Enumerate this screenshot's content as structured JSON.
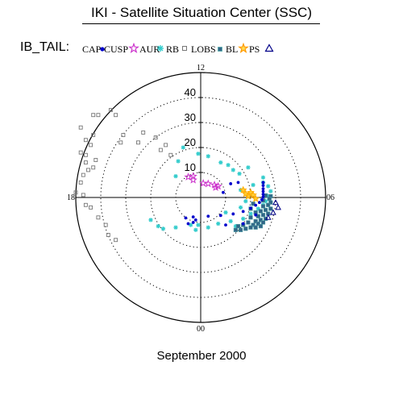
{
  "title": "IKI - Satellite Situation Center (SSC)",
  "legend": {
    "prefix": "IB_TAIL:",
    "items": [
      {
        "label": "CAP",
        "symbol": "dot",
        "color": "#0000cc"
      },
      {
        "label": "CUSP",
        "symbol": "star",
        "color": "#cc33cc"
      },
      {
        "label": "AUR",
        "symbol": "asterisk",
        "color": "#33cccc"
      },
      {
        "label": "RB",
        "symbol": "square",
        "color": "#777777"
      },
      {
        "label": "LOBS",
        "symbol": "square-filled",
        "color": "#336688"
      },
      {
        "label": "BL",
        "symbol": "star",
        "color": "#ffaa00"
      },
      {
        "label": "PS",
        "symbol": "triangle",
        "color": "#000088"
      }
    ]
  },
  "month_label": "September 2000",
  "chart_data": {
    "type": "scatter",
    "coordinate_system": "polar",
    "angular_axis": {
      "unit": "MLT hours",
      "labels": [
        {
          "hour": 12,
          "text": "12"
        },
        {
          "hour": 18,
          "text": "18"
        },
        {
          "hour": 0,
          "text": "00"
        },
        {
          "hour": 6,
          "text": "06"
        }
      ]
    },
    "radial_axis": {
      "max": 50,
      "ticks": [
        10,
        20,
        30,
        40
      ],
      "tick_labels": [
        "10",
        "20",
        "30",
        "40"
      ],
      "outer_circle_solid": true,
      "inner_circles_dotted": true
    },
    "series": [
      {
        "name": "CAP",
        "color": "#0000cc",
        "symbol": "dot",
        "points": [
          [
            9,
            2
          ],
          [
            15,
            6
          ],
          [
            25,
            6
          ],
          [
            25,
            4.8
          ],
          [
            25,
            3.5
          ],
          [
            25,
            2.4
          ],
          [
            25,
            1.3
          ],
          [
            25,
            0.2
          ],
          [
            24.5,
            -0.9
          ],
          [
            23.5,
            -2.0
          ],
          [
            22,
            -3.1
          ],
          [
            20,
            -4.3
          ],
          [
            17,
            -5.6
          ],
          [
            13,
            -6.6
          ],
          [
            8,
            -7.2
          ],
          [
            3,
            -7.5
          ],
          [
            -3,
            -7.8
          ],
          [
            -6,
            -8.2
          ],
          [
            -2,
            -9
          ],
          [
            17,
            -10.5
          ],
          [
            10,
            -11
          ],
          [
            -5,
            -10.5
          ],
          [
            -3,
            -10
          ],
          [
            22,
            -7
          ],
          [
            12,
            5.5
          ]
        ]
      },
      {
        "name": "CUSP",
        "color": "#cc33cc",
        "symbol": "star",
        "points": [
          [
            -3,
            8.5
          ],
          [
            -5,
            8.2
          ],
          [
            -3,
            7
          ],
          [
            1,
            5.7
          ],
          [
            3,
            5.5
          ],
          [
            5.5,
            5
          ],
          [
            7,
            4.5
          ],
          [
            6,
            4
          ]
        ]
      },
      {
        "name": "AUR",
        "color": "#33cccc",
        "symbol": "asterisk",
        "points": [
          [
            -7,
            20
          ],
          [
            -1,
            17.5
          ],
          [
            -9,
            14.5
          ],
          [
            -10,
            8.5
          ],
          [
            3,
            16.5
          ],
          [
            8,
            14
          ],
          [
            11,
            13
          ],
          [
            13,
            11
          ],
          [
            19,
            12
          ],
          [
            15.5,
            9.5
          ],
          [
            25,
            8
          ],
          [
            25,
            6
          ],
          [
            21,
            5
          ],
          [
            27,
            4.5
          ],
          [
            28,
            2.5
          ],
          [
            16,
            3
          ],
          [
            27,
            0.5
          ],
          [
            26,
            -1.5
          ],
          [
            25,
            -3
          ],
          [
            23,
            -4.5
          ],
          [
            20,
            -6.5
          ],
          [
            17,
            -8.5
          ],
          [
            12,
            -9.5
          ],
          [
            7,
            -10.5
          ],
          [
            3,
            -12
          ],
          [
            -2,
            -13
          ],
          [
            -10,
            -12
          ],
          [
            -15,
            -12.5
          ],
          [
            -17,
            -11.5
          ],
          [
            -20,
            -9
          ],
          [
            18,
            -1.5
          ],
          [
            16,
            -4
          ],
          [
            10,
            -6
          ],
          [
            14,
            -11.5
          ],
          [
            -4,
            -11
          ],
          [
            -1,
            -11
          ]
        ]
      },
      {
        "name": "RB",
        "color": "#777777",
        "symbol": "square",
        "points": [
          [
            -43,
            33
          ],
          [
            -41,
            33
          ],
          [
            -36,
            35
          ],
          [
            -34,
            33
          ],
          [
            -31,
            25
          ],
          [
            -32,
            22
          ],
          [
            -23,
            26
          ],
          [
            -25,
            22
          ],
          [
            -18,
            24
          ],
          [
            -16,
            19
          ],
          [
            -14,
            21
          ],
          [
            -12,
            17
          ],
          [
            -48,
            28
          ],
          [
            -46,
            23
          ],
          [
            -44,
            21
          ],
          [
            -43,
            25
          ],
          [
            -48,
            18
          ],
          [
            -46,
            17
          ],
          [
            -46,
            14
          ],
          [
            -43,
            12
          ],
          [
            -42,
            15
          ],
          [
            -45,
            11
          ],
          [
            -47,
            9
          ],
          [
            -50,
            2
          ],
          [
            -47,
            1
          ],
          [
            -46,
            -3
          ],
          [
            -44,
            -4
          ],
          [
            -48,
            6
          ],
          [
            -41,
            -8
          ],
          [
            -38,
            -11
          ],
          [
            -37,
            -15
          ],
          [
            -34,
            -17
          ]
        ]
      },
      {
        "name": "LOBS",
        "color": "#336688",
        "symbol": "square-filled",
        "points": [
          [
            28,
            0.5
          ],
          [
            26,
            0.8
          ],
          [
            27.5,
            -0.5
          ],
          [
            25,
            -1.2
          ],
          [
            28,
            -2
          ],
          [
            27,
            -3
          ],
          [
            25,
            -3.5
          ],
          [
            28,
            -4.5
          ],
          [
            26,
            -5
          ],
          [
            24,
            -5.5
          ],
          [
            27,
            -6.5
          ],
          [
            25,
            -7
          ],
          [
            23,
            -7.5
          ],
          [
            26,
            -8.5
          ],
          [
            24,
            -9
          ],
          [
            22,
            -9.5
          ],
          [
            25,
            -10
          ],
          [
            23,
            -10.5
          ],
          [
            21,
            -11
          ],
          [
            24,
            -11.5
          ],
          [
            22,
            -12
          ],
          [
            20,
            -12
          ],
          [
            18,
            -12.5
          ],
          [
            16,
            -13
          ],
          [
            14,
            -13
          ],
          [
            21,
            -2.5
          ],
          [
            20,
            -4.5
          ],
          [
            22,
            -6
          ],
          [
            20,
            -8
          ],
          [
            19,
            -10
          ],
          [
            17,
            -11
          ],
          [
            15,
            -11.5
          ]
        ]
      },
      {
        "name": "BL",
        "color": "#ffaa00",
        "symbol": "star",
        "points": [
          [
            17,
            3
          ],
          [
            20,
            2
          ],
          [
            19,
            0.5
          ],
          [
            22,
            -0.5
          ],
          [
            18,
            1.5
          ],
          [
            21,
            1
          ]
        ]
      },
      {
        "name": "PS",
        "color": "#000088",
        "symbol": "triangle",
        "points": [
          [
            30,
            -2
          ],
          [
            31,
            -4
          ],
          [
            29,
            -6
          ],
          [
            27,
            -8
          ]
        ]
      }
    ]
  }
}
